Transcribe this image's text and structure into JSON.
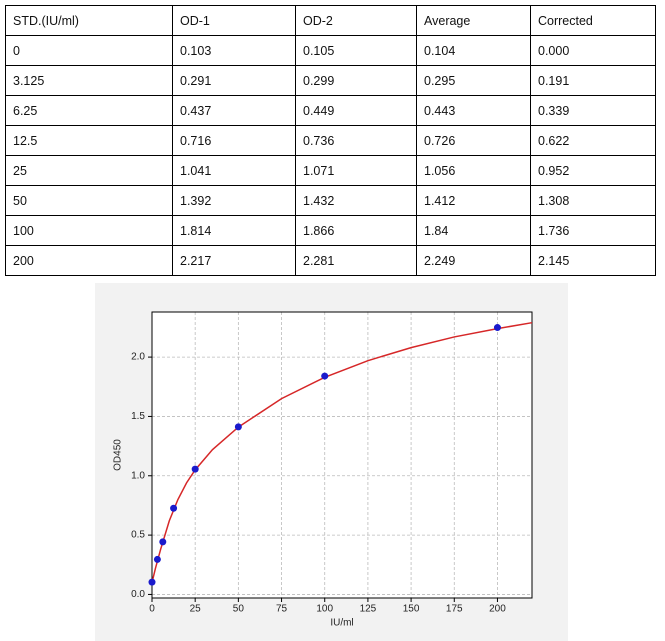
{
  "table": {
    "header": [
      "STD.(IU/ml)",
      "OD-1",
      "OD-2",
      "Average",
      "Corrected"
    ],
    "rows": [
      [
        "0",
        "0.103",
        "0.105",
        "0.104",
        "0.000"
      ],
      [
        "3.125",
        "0.291",
        "0.299",
        "0.295",
        "0.191"
      ],
      [
        "6.25",
        "0.437",
        "0.449",
        "0.443",
        "0.339"
      ],
      [
        "12.5",
        "0.716",
        "0.736",
        "0.726",
        "0.622"
      ],
      [
        "25",
        "1.041",
        "1.071",
        "1.056",
        "0.952"
      ],
      [
        "50",
        "1.392",
        "1.432",
        "1.412",
        "1.308"
      ],
      [
        "100",
        "1.814",
        "1.866",
        "1.84",
        "1.736"
      ],
      [
        "200",
        "2.217",
        "2.281",
        "2.249",
        "2.145"
      ]
    ]
  },
  "chart_data": {
    "type": "scatter",
    "xlabel": "IU/ml",
    "ylabel": "OD450",
    "xlim": [
      0,
      220
    ],
    "ylim": [
      -0.03,
      2.38
    ],
    "xticks": [
      0,
      25,
      50,
      75,
      100,
      125,
      150,
      175,
      200
    ],
    "yticks": [
      {
        "value": 0,
        "label": "0.0"
      },
      {
        "value": 0.5,
        "label": "0.5"
      },
      {
        "value": 1,
        "label": "1.0"
      },
      {
        "value": 1.5,
        "label": "1.5"
      },
      {
        "value": 2,
        "label": "2.0"
      }
    ],
    "grid": true,
    "series": [
      {
        "type": "scatter",
        "color": "#1a1acc",
        "x": [
          0,
          3.125,
          6.25,
          12.5,
          25,
          50,
          100,
          200
        ],
        "values": [
          0.104,
          0.295,
          0.443,
          0.726,
          1.056,
          1.412,
          1.84,
          2.249
        ]
      },
      {
        "type": "line",
        "color": "#d62728",
        "x": [
          0,
          2,
          5,
          10,
          15,
          20,
          25,
          35,
          50,
          75,
          100,
          125,
          150,
          175,
          200,
          220
        ],
        "values": [
          0.1,
          0.22,
          0.38,
          0.62,
          0.8,
          0.94,
          1.05,
          1.22,
          1.41,
          1.65,
          1.83,
          1.97,
          2.08,
          2.17,
          2.24,
          2.29
        ]
      }
    ]
  }
}
